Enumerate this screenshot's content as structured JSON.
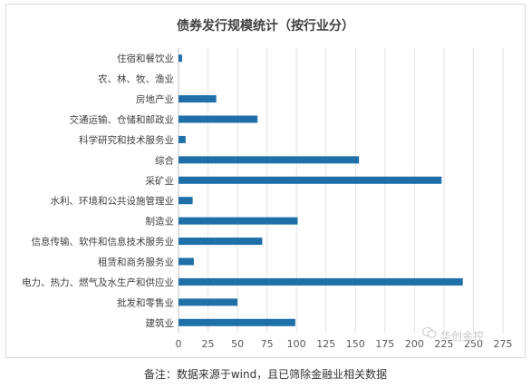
{
  "chart_data": {
    "type": "bar",
    "orientation": "horizontal",
    "title": "债券发行规模统计（按行业分）",
    "categories": [
      "住宿和餐饮业",
      "农、林、牧、渔业",
      "房地产业",
      "交通运输、仓储和邮政业",
      "科学研究和技术服务业",
      "综合",
      "采矿业",
      "水利、环境和公共设施管理业",
      "制造业",
      "信息传输、软件和信息技术服务业",
      "租赁和商务服务业",
      "电力、热力、燃气及水生产和供应业",
      "批发和零售业",
      "建筑业"
    ],
    "values": [
      3,
      0,
      32,
      67,
      6,
      153,
      223,
      12,
      101,
      71,
      13,
      241,
      50,
      99
    ],
    "xlim": [
      0,
      275
    ],
    "xticks": [
      0,
      25,
      50,
      75,
      100,
      125,
      150,
      175,
      200,
      225,
      250,
      275
    ],
    "grid": true,
    "bar_color": "#1f6fa8"
  },
  "note": "备注：数据来源于wind，且已筛除金融业相关数据",
  "watermark": "华创金控"
}
